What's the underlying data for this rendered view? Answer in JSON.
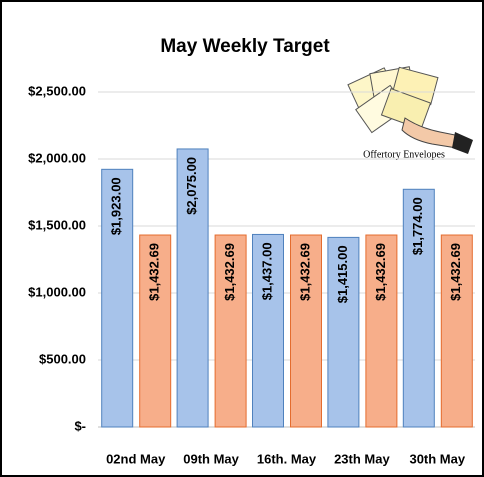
{
  "chart_data": {
    "type": "bar",
    "title": "May Weekly Target",
    "annotation": "Offertory Envelopes",
    "categories": [
      "02nd May",
      "09th May",
      "16th. May",
      "23th May",
      "30th May"
    ],
    "series": [
      {
        "color": "#a7c3ea",
        "edge": "#4f81bd",
        "values": [
          1923,
          2075,
          1437,
          1415,
          1774
        ],
        "value_labels": [
          "$1,923.00",
          "$2,075.00",
          "$1,437.00",
          "$1,415.00",
          "$1,774.00"
        ]
      },
      {
        "color": "#f7ae8a",
        "edge": "#e46c2e",
        "values": [
          1432.69,
          1432.69,
          1432.69,
          1432.69,
          1432.69
        ],
        "value_labels": [
          "$1,432.69",
          "$1,432.69",
          "$1,432.69",
          "$1,432.69",
          "$1,432.69"
        ]
      }
    ],
    "ylim": [
      0,
      2500
    ],
    "yticks": [
      {
        "value": 0,
        "label": "$-"
      },
      {
        "value": 500,
        "label": "$500.00"
      },
      {
        "value": 1000,
        "label": "$1,000.00"
      },
      {
        "value": 1500,
        "label": "$1,500.00"
      },
      {
        "value": 2000,
        "label": "$2,000.00"
      },
      {
        "value": 2500,
        "label": "$2,500.00"
      }
    ],
    "grid": true
  }
}
